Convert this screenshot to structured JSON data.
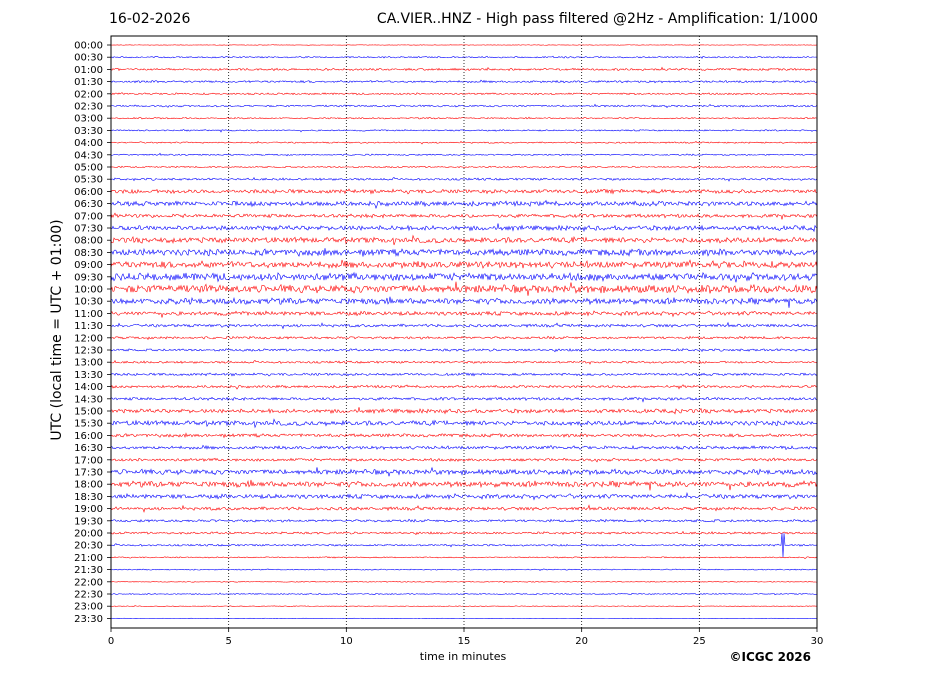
{
  "header": {
    "date": "16-02-2026",
    "station_title": "CA.VIER..HNZ - High pass filtered @2Hz - Amplification: 1/1000"
  },
  "footer": {
    "copyright": "©ICGC 2026"
  },
  "chart_data": {
    "type": "line",
    "title": "CA.VIER..HNZ - High pass filtered @2Hz - Amplification: 1/1000",
    "xlabel": "time in minutes",
    "ylabel": "UTC (local time = UTC + 01:00)",
    "xlim": [
      0,
      30
    ],
    "x_ticks": [
      "0",
      "5",
      "10",
      "15",
      "20",
      "25",
      "30"
    ],
    "grid": "vertical dotted at x ticks",
    "colors": {
      "red": "#ff0000",
      "blue": "#0000ff"
    },
    "row_labels": [
      "00:00",
      "00:30",
      "01:00",
      "01:30",
      "02:00",
      "02:30",
      "03:00",
      "03:30",
      "04:00",
      "04:30",
      "05:00",
      "05:30",
      "06:00",
      "06:30",
      "07:00",
      "07:30",
      "08:00",
      "08:30",
      "09:00",
      "09:30",
      "10:00",
      "10:30",
      "11:00",
      "11:30",
      "12:00",
      "12:30",
      "13:00",
      "13:30",
      "14:00",
      "14:30",
      "15:00",
      "15:30",
      "16:00",
      "16:30",
      "17:00",
      "17:30",
      "18:00",
      "18:30",
      "19:00",
      "19:30",
      "20:00",
      "20:30",
      "21:00",
      "21:30",
      "22:00",
      "22:30",
      "23:00",
      "23:30"
    ],
    "row_colors": [
      "red",
      "blue",
      "red",
      "blue",
      "red",
      "blue",
      "red",
      "blue",
      "red",
      "blue",
      "red",
      "blue",
      "red",
      "blue",
      "red",
      "blue",
      "red",
      "blue",
      "red",
      "blue",
      "red",
      "blue",
      "red",
      "blue",
      "red",
      "blue",
      "red",
      "blue",
      "red",
      "blue",
      "red",
      "blue",
      "red",
      "blue",
      "red",
      "blue",
      "red",
      "blue",
      "red",
      "blue",
      "red",
      "blue",
      "red",
      "blue",
      "red",
      "blue",
      "red",
      "blue"
    ],
    "relative_amplitude": [
      0.3,
      0.8,
      1.2,
      1.2,
      1.0,
      1.0,
      0.8,
      0.8,
      0.8,
      0.8,
      0.8,
      1.2,
      2.2,
      2.6,
      2.0,
      2.6,
      3.0,
      3.6,
      3.8,
      4.2,
      4.4,
      3.4,
      2.2,
      1.6,
      1.4,
      1.3,
      1.2,
      1.4,
      1.4,
      1.6,
      2.2,
      2.6,
      1.8,
      1.8,
      1.6,
      2.8,
      3.2,
      2.4,
      1.8,
      1.4,
      1.2,
      1.0,
      0.7,
      0.6,
      0.5,
      0.6,
      0.4,
      0.2
    ],
    "events": [
      {
        "row": "20:30",
        "minute": 28.55,
        "peak_amplitude": 12
      }
    ]
  }
}
